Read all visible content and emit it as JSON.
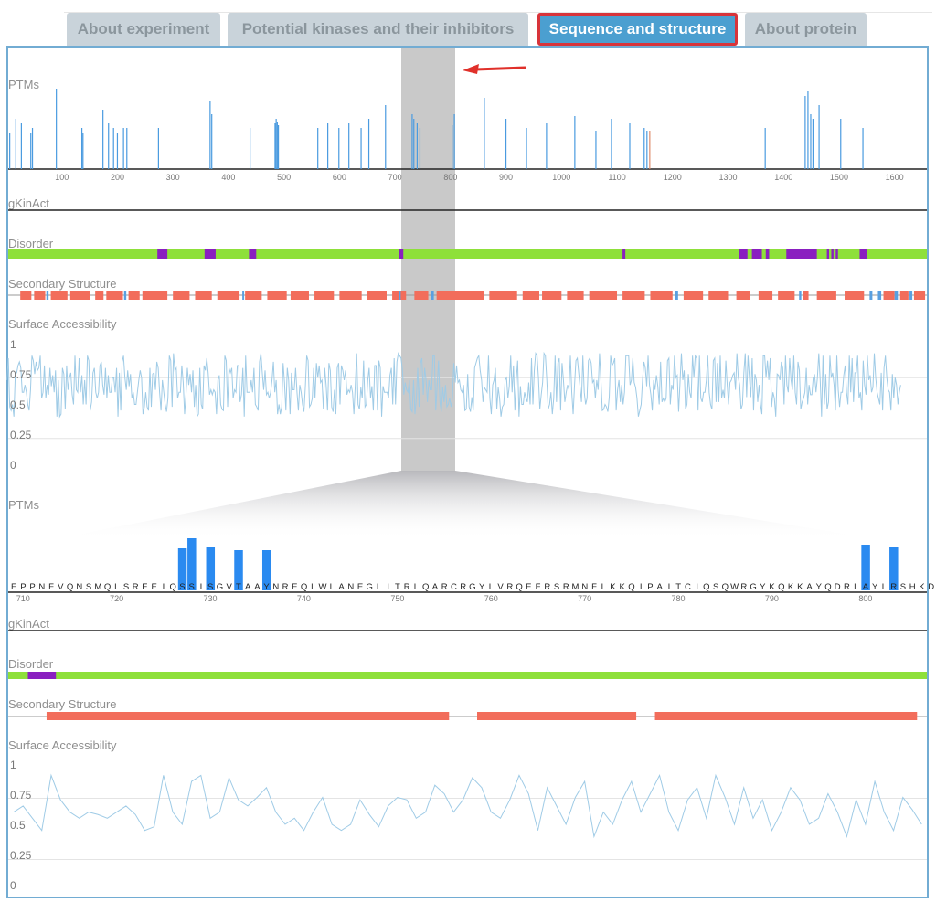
{
  "tabs": [
    {
      "label": "About experiment",
      "active": false
    },
    {
      "label": "Potential kinases and their inhibitors",
      "active": false
    },
    {
      "label": "Sequence and structure",
      "active": true
    },
    {
      "label": "About protein",
      "active": false
    }
  ],
  "colors": {
    "ptm": "#4a9be0",
    "ptm_alt": "#e08a6a",
    "disorder": "#8ee03a",
    "disordered": "#8a1fc0",
    "helix": "#f26d5b",
    "strand": "#5aa0e0",
    "accessibility": "#9fcbe6",
    "zoom_bar": "#2a8af0",
    "accent": "#4b9fd0"
  },
  "overview": {
    "track_labels": {
      "ptms": "PTMs",
      "gkinact": "gKinAct",
      "disorder": "Disorder",
      "secondary": "Secondary Structure",
      "surface": "Surface Accessibility"
    },
    "x_ticks": [
      "100",
      "200",
      "300",
      "400",
      "500",
      "600",
      "700",
      "800",
      "900",
      "1000",
      "1100",
      "1200",
      "1300",
      "1400",
      "1500",
      "1600"
    ],
    "y_ticks": [
      "1",
      "0.75",
      "0.5",
      "0.25",
      "0"
    ],
    "selection_range": [
      709,
      806
    ]
  },
  "detail": {
    "track_labels": {
      "ptms": "PTMs",
      "gkinact": "gKinAct",
      "disorder": "Disorder",
      "secondary": "Secondary Structure",
      "surface": "Surface Accessibility"
    },
    "start": 709,
    "sequence": "EPPNFVQNSMQLSREEIQSSISGVTAAYNREQLWLANEGLITRLQARCRGYLVRQEFRSRMNFLKKQIPAITCIQSQWRGYKQKKAYQDRLAYLRSHKD",
    "x_ticks": [
      "710",
      "720",
      "730",
      "740",
      "750",
      "760",
      "770",
      "780",
      "790",
      "800"
    ],
    "y_ticks": [
      "1",
      "0.75",
      "0.5",
      "0.25",
      "0"
    ]
  },
  "chart_data": [
    {
      "type": "bar",
      "title": "PTMs (overview)",
      "xlim": [
        1,
        1650
      ],
      "sites": [
        [
          5,
          40
        ],
        [
          16,
          55
        ],
        [
          26,
          50
        ],
        [
          43,
          40
        ],
        [
          46,
          45
        ],
        [
          89,
          88
        ],
        [
          135,
          45
        ],
        [
          137,
          40
        ],
        [
          173,
          65
        ],
        [
          183,
          50
        ],
        [
          192,
          45
        ],
        [
          199,
          40
        ],
        [
          210,
          45
        ],
        [
          216,
          45
        ],
        [
          273,
          45
        ],
        [
          366,
          75
        ],
        [
          369,
          60
        ],
        [
          438,
          45
        ],
        [
          483,
          50
        ],
        [
          485,
          55
        ],
        [
          487,
          52
        ],
        [
          489,
          48
        ],
        [
          560,
          45
        ],
        [
          578,
          50
        ],
        [
          598,
          45
        ],
        [
          616,
          50
        ],
        [
          638,
          45
        ],
        [
          652,
          55
        ],
        [
          682,
          70
        ],
        [
          730,
          60
        ],
        [
          733,
          55
        ],
        [
          739,
          50
        ],
        [
          744,
          45
        ],
        [
          802,
          48
        ],
        [
          806,
          60
        ],
        [
          860,
          78
        ],
        [
          899,
          55
        ],
        [
          936,
          45
        ],
        [
          972,
          50
        ],
        [
          1023,
          58
        ],
        [
          1061,
          42
        ],
        [
          1089,
          55
        ],
        [
          1122,
          50
        ],
        [
          1148,
          45
        ],
        [
          1153,
          42
        ],
        [
          1158,
          42
        ],
        [
          1366,
          45
        ],
        [
          1438,
          80
        ],
        [
          1443,
          85
        ],
        [
          1448,
          60
        ],
        [
          1452,
          55
        ],
        [
          1463,
          70
        ],
        [
          1502,
          55
        ],
        [
          1542,
          45
        ]
      ],
      "alt_sites": [
        136,
        200,
        1158
      ]
    },
    {
      "type": "line",
      "title": "Surface Accessibility (overview)",
      "ylim": [
        0,
        1
      ],
      "step": 10,
      "values": [
        0.7,
        0.5,
        0.82,
        0.6,
        0.45,
        0.75,
        0.9,
        0.55,
        0.65,
        0.4,
        0.8,
        0.62,
        0.5,
        0.88,
        0.7,
        0.45,
        0.6,
        0.85,
        0.55,
        0.72,
        0.4,
        0.9,
        0.65,
        0.5,
        0.78,
        0.6,
        0.48,
        0.85,
        0.7,
        0.55,
        0.92,
        0.6,
        0.42,
        0.75,
        0.66,
        0.5,
        0.88,
        0.58,
        0.7,
        0.45,
        0.8,
        0.62,
        0.52,
        0.9,
        0.7,
        0.48,
        0.76,
        0.6,
        0.85,
        0.5,
        0.68,
        0.42,
        0.8,
        0.6,
        0.9,
        0.55,
        0.72,
        0.46,
        0.84,
        0.62,
        0.5,
        0.78,
        0.66,
        0.92,
        0.55,
        0.7,
        0.45,
        0.86,
        0.6,
        0.74,
        0.5,
        0.88,
        0.62,
        0.44,
        0.8,
        0.58,
        0.7,
        0.9,
        0.52,
        0.66,
        0.48,
        0.82,
        0.6,
        0.75,
        0.45,
        0.9,
        0.64,
        0.55,
        0.8,
        0.4,
        0.72,
        0.6,
        0.86,
        0.5,
        0.68,
        0.78,
        0.46,
        0.9,
        0.6,
        0.52,
        0.84,
        0.66,
        0.42,
        0.76,
        0.6,
        0.88,
        0.55,
        0.7,
        0.48,
        0.82,
        0.62,
        0.5,
        0.9,
        0.68,
        0.45,
        0.8,
        0.58,
        0.74,
        0.52,
        0.86,
        0.62,
        0.44,
        0.78,
        0.6,
        0.9,
        0.55,
        0.7,
        0.46,
        0.84,
        0.62,
        0.5,
        0.76,
        0.66,
        0.92,
        0.56,
        0.7,
        0.42,
        0.86,
        0.6,
        0.74,
        0.5,
        0.88,
        0.6,
        0.46,
        0.8,
        0.58,
        0.72,
        0.9,
        0.52,
        0.66,
        0.48,
        0.82,
        0.6,
        0.76,
        0.45,
        0.9,
        0.64,
        0.55,
        0.8,
        0.6,
        0.72,
        0.66
      ]
    },
    {
      "type": "segments",
      "title": "Disorder (overview)",
      "disordered": [
        [
          272,
          290
        ],
        [
          357,
          377
        ],
        [
          437,
          450
        ],
        [
          708,
          715
        ],
        [
          1110,
          1115
        ],
        [
          1320,
          1335
        ],
        [
          1343,
          1361
        ],
        [
          1368,
          1374
        ],
        [
          1405,
          1460
        ],
        [
          1478,
          1482
        ],
        [
          1486,
          1490
        ],
        [
          1494,
          1498
        ],
        [
          1537,
          1550
        ]
      ]
    },
    {
      "type": "segments",
      "title": "Secondary Structure (overview)",
      "helix": [
        [
          25,
          45
        ],
        [
          50,
          70
        ],
        [
          80,
          110
        ],
        [
          115,
          150
        ],
        [
          160,
          175
        ],
        [
          180,
          210
        ],
        [
          220,
          240
        ],
        [
          245,
          290
        ],
        [
          300,
          330
        ],
        [
          340,
          370
        ],
        [
          380,
          420
        ],
        [
          430,
          460
        ],
        [
          470,
          505
        ],
        [
          512,
          545
        ],
        [
          555,
          590
        ],
        [
          600,
          640
        ],
        [
          650,
          685
        ],
        [
          695,
          720
        ],
        [
          735,
          760
        ],
        [
          775,
          860
        ],
        [
          870,
          920
        ],
        [
          930,
          960
        ],
        [
          965,
          1000
        ],
        [
          1010,
          1040
        ],
        [
          1050,
          1100
        ],
        [
          1110,
          1150
        ],
        [
          1160,
          1200
        ],
        [
          1220,
          1255
        ],
        [
          1265,
          1300
        ],
        [
          1315,
          1340
        ],
        [
          1355,
          1380
        ],
        [
          1390,
          1420
        ],
        [
          1435,
          1445
        ],
        [
          1460,
          1495
        ],
        [
          1510,
          1545
        ],
        [
          1580,
          1600
        ],
        [
          1610,
          1625
        ],
        [
          1635,
          1655
        ]
      ],
      "strand": [
        [
          72,
          76
        ],
        [
          212,
          216
        ],
        [
          425,
          428
        ],
        [
          707,
          710
        ],
        [
          765,
          770
        ],
        [
          1205,
          1210
        ],
        [
          1428,
          1432
        ],
        [
          1555,
          1560
        ],
        [
          1570,
          1576
        ],
        [
          1600,
          1606
        ],
        [
          1627,
          1632
        ]
      ]
    },
    {
      "type": "bar",
      "title": "PTMs (detail)",
      "sites": [
        [
          727,
          36
        ],
        [
          728,
          47
        ],
        [
          730,
          38
        ],
        [
          733,
          34
        ],
        [
          736,
          34
        ],
        [
          800,
          40
        ],
        [
          803,
          37
        ]
      ]
    },
    {
      "type": "segments",
      "title": "Disorder (detail)",
      "disordered": [
        [
          711,
          713
        ]
      ]
    },
    {
      "type": "segments",
      "title": "Secondary Structure (detail)",
      "helix": [
        [
          713,
          755
        ],
        [
          759,
          775
        ],
        [
          778,
          805
        ]
      ]
    },
    {
      "type": "line",
      "title": "Surface Accessibility (detail)",
      "ylim": [
        0,
        1
      ],
      "x_start": 709,
      "values": [
        0.6,
        0.65,
        0.55,
        0.45,
        0.9,
        0.7,
        0.6,
        0.55,
        0.6,
        0.58,
        0.55,
        0.6,
        0.65,
        0.58,
        0.45,
        0.48,
        0.9,
        0.6,
        0.5,
        0.85,
        0.9,
        0.55,
        0.6,
        0.88,
        0.7,
        0.65,
        0.72,
        0.8,
        0.6,
        0.5,
        0.55,
        0.45,
        0.6,
        0.72,
        0.5,
        0.45,
        0.5,
        0.7,
        0.58,
        0.48,
        0.65,
        0.72,
        0.7,
        0.55,
        0.6,
        0.82,
        0.75,
        0.6,
        0.7,
        0.88,
        0.8,
        0.6,
        0.55,
        0.7,
        0.9,
        0.75,
        0.45,
        0.8,
        0.65,
        0.5,
        0.72,
        0.85,
        0.4,
        0.6,
        0.5,
        0.7,
        0.85,
        0.6,
        0.75,
        0.9,
        0.6,
        0.45,
        0.7,
        0.8,
        0.55,
        0.9,
        0.72,
        0.5,
        0.8,
        0.55,
        0.7,
        0.45,
        0.6,
        0.8,
        0.7,
        0.5,
        0.55,
        0.75,
        0.6,
        0.4,
        0.7,
        0.5,
        0.85,
        0.6,
        0.45,
        0.72,
        0.62,
        0.5
      ]
    }
  ]
}
